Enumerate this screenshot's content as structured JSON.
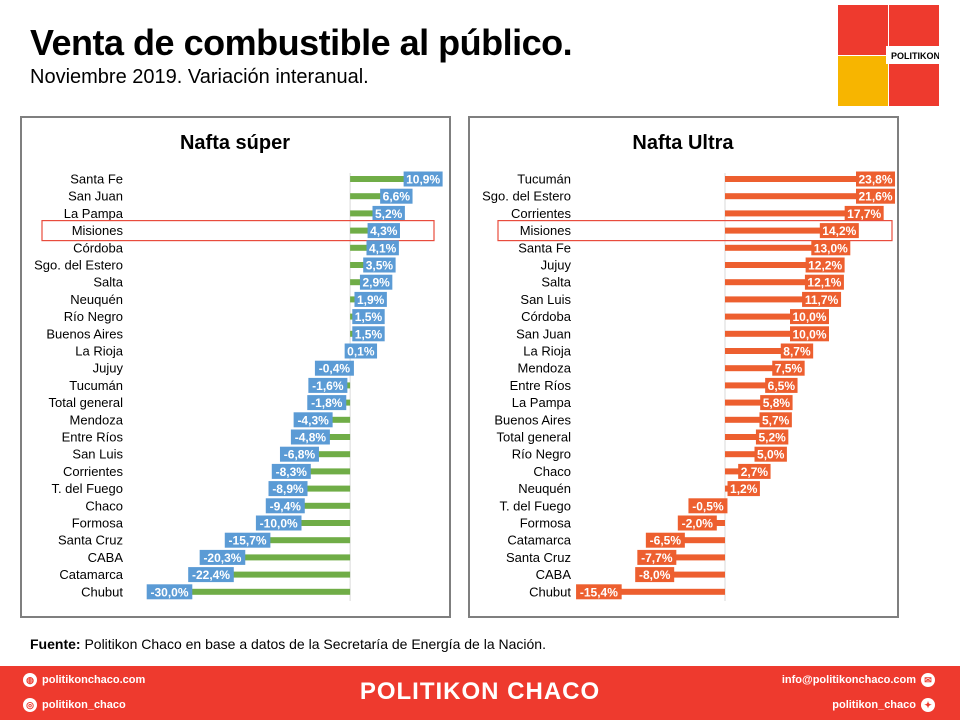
{
  "header": {
    "title": "Venta de combustible al público.",
    "subtitle": "Noviembre 2019. Variación interanual."
  },
  "logo": {
    "text": "POLITIKON",
    "colors": [
      "#ee3a2e",
      "#ee3a2e",
      "#f7b500",
      "#ee3a2e"
    ]
  },
  "source": {
    "label": "Fuente:",
    "text": " Politikon Chaco en base a datos de la Secretaría  de Energía de la Nación."
  },
  "footer": {
    "brand": "POLITIKON CHACO",
    "website": "politikonchaco.com",
    "instagram": "politikon_chaco",
    "email": "info@politikonchaco.com",
    "twitter": "politikon_chaco"
  },
  "colors": {
    "super_bar": "#70ad47",
    "super_label": "#5b9bd5",
    "ultra": "#ed5f2f",
    "highlight": "#e84c3d"
  },
  "chart_data": [
    {
      "type": "bar",
      "orientation": "horizontal",
      "title": "Nafta súper",
      "highlight": "Misiones",
      "categories": [
        "Santa Fe",
        "San Juan",
        "La Pampa",
        "Misiones",
        "Córdoba",
        "Sgo. del Estero",
        "Salta",
        "Neuquén",
        "Río Negro",
        "Buenos Aires",
        "La Rioja",
        "Jujuy",
        "Tucumán",
        "Total general",
        "Mendoza",
        "Entre Ríos",
        "San Luis",
        "Corrientes",
        "T. del Fuego",
        "Chaco",
        "Formosa",
        "Santa Cruz",
        "CABA",
        "Catamarca",
        "Chubut"
      ],
      "values": [
        10.9,
        6.6,
        5.2,
        4.3,
        4.1,
        3.5,
        2.9,
        1.9,
        1.5,
        1.5,
        0.1,
        -0.4,
        -1.6,
        -1.8,
        -4.3,
        -4.8,
        -6.8,
        -8.3,
        -8.9,
        -9.4,
        -10.0,
        -15.7,
        -20.3,
        -22.4,
        -30.0
      ],
      "labels": [
        "10,9%",
        "6,6%",
        "5,2%",
        "4,3%",
        "4,1%",
        "3,5%",
        "2,9%",
        "1,9%",
        "1,5%",
        "1,5%",
        "0,1%",
        "-0,4%",
        "-1,6%",
        "-1,8%",
        "-4,3%",
        "-4,8%",
        "-6,8%",
        "-8,3%",
        "-8,9%",
        "-9,4%",
        "-10,0%",
        "-15,7%",
        "-20,3%",
        "-22,4%",
        "-30,0%"
      ],
      "xlim": [
        -35,
        15
      ]
    },
    {
      "type": "bar",
      "orientation": "horizontal",
      "title": "Nafta Ultra",
      "highlight": "Misiones",
      "categories": [
        "Tucumán",
        "Sgo. del Estero",
        "Corrientes",
        "Misiones",
        "Santa Fe",
        "Jujuy",
        "Salta",
        "San Luis",
        "Córdoba",
        "San Juan",
        "La Rioja",
        "Mendoza",
        "Entre Ríos",
        "La Pampa",
        "Buenos Aires",
        "Total general",
        "Río Negro",
        "Chaco",
        "Neuquén",
        "T. del Fuego",
        "Formosa",
        "Catamarca",
        "Santa Cruz",
        "CABA",
        "Chubut"
      ],
      "values": [
        23.8,
        21.6,
        17.7,
        14.2,
        13.0,
        12.2,
        12.1,
        11.7,
        10.0,
        10.0,
        8.7,
        7.5,
        6.5,
        5.8,
        5.7,
        5.2,
        5.0,
        2.7,
        1.2,
        -0.5,
        -2.0,
        -6.5,
        -7.7,
        -8.0,
        -15.4
      ],
      "labels": [
        "23,8%",
        "21,6%",
        "17,7%",
        "14,2%",
        "13,0%",
        "12,2%",
        "12,1%",
        "11,7%",
        "10,0%",
        "10,0%",
        "8,7%",
        "7,5%",
        "6,5%",
        "5,8%",
        "5,7%",
        "5,2%",
        "5,0%",
        "2,7%",
        "1,2%",
        "-0,5%",
        "-2,0%",
        "-6,5%",
        "-7,7%",
        "-8,0%",
        "-15,4%"
      ],
      "xlim": [
        -20,
        30
      ]
    }
  ]
}
